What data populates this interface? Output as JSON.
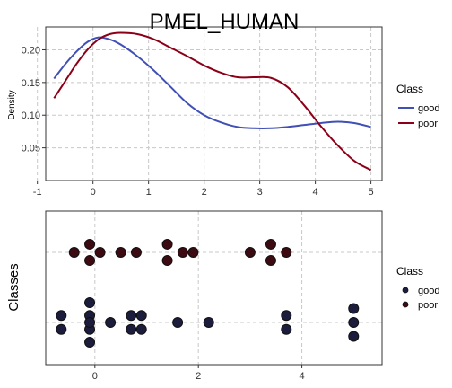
{
  "chart_data": [
    {
      "type": "line",
      "title": "PMEL_HUMAN",
      "ylabel": "Density",
      "xlim": [
        -0.85,
        5.2
      ],
      "ylim": [
        0.0,
        0.235
      ],
      "xticks": [
        -1,
        0,
        1,
        2,
        3,
        4,
        5
      ],
      "yticks": [
        0.05,
        0.1,
        0.15,
        0.2
      ],
      "ytick_labels": [
        "0.05",
        "0.10",
        "0.15",
        "0.20"
      ],
      "grid": true,
      "legend_title": "Class",
      "legend_position": "right",
      "series": [
        {
          "name": "good",
          "color": "#4050b5",
          "x": [
            -0.7,
            -0.5,
            -0.3,
            -0.1,
            0.1,
            0.3,
            0.5,
            0.8,
            1.1,
            1.4,
            1.7,
            2.0,
            2.3,
            2.6,
            2.9,
            3.2,
            3.5,
            3.8,
            4.1,
            4.4,
            4.7,
            5.0
          ],
          "y": [
            0.156,
            0.178,
            0.197,
            0.212,
            0.219,
            0.216,
            0.208,
            0.19,
            0.168,
            0.143,
            0.118,
            0.1,
            0.089,
            0.082,
            0.08,
            0.08,
            0.082,
            0.085,
            0.088,
            0.09,
            0.088,
            0.082
          ]
        },
        {
          "name": "poor",
          "color": "#8b0018",
          "x": [
            -0.7,
            -0.5,
            -0.3,
            -0.1,
            0.1,
            0.3,
            0.5,
            0.8,
            1.1,
            1.4,
            1.7,
            2.0,
            2.3,
            2.6,
            2.9,
            3.2,
            3.5,
            3.8,
            4.1,
            4.4,
            4.7,
            5.0
          ],
          "y": [
            0.126,
            0.152,
            0.178,
            0.2,
            0.216,
            0.224,
            0.226,
            0.224,
            0.216,
            0.203,
            0.19,
            0.176,
            0.165,
            0.158,
            0.158,
            0.157,
            0.143,
            0.115,
            0.083,
            0.054,
            0.03,
            0.016
          ]
        }
      ]
    },
    {
      "type": "scatter",
      "ylabel": "Classes",
      "xlim": [
        -0.95,
        5.55
      ],
      "xticks": [
        0,
        2,
        4
      ],
      "grid": true,
      "legend_title": "Class",
      "legend_position": "right",
      "series": [
        {
          "name": "good",
          "fill": "#1c1c3c",
          "x": [
            -0.65,
            -0.65,
            -0.1,
            -0.1,
            -0.1,
            -0.1,
            -0.1,
            0.3,
            0.7,
            0.7,
            0.9,
            0.9,
            1.6,
            2.2,
            3.7,
            3.7,
            5.0,
            5.0,
            5.0
          ],
          "y": [
            0.06,
            -0.06,
            0.17,
            0.06,
            -0.06,
            -0.17,
            0.0,
            0.0,
            0.06,
            -0.06,
            0.06,
            -0.06,
            0.0,
            0.0,
            0.06,
            -0.06,
            0.12,
            0.0,
            -0.12
          ]
        },
        {
          "name": "poor",
          "fill": "#3c0a10",
          "x": [
            -0.4,
            -0.1,
            -0.1,
            0.1,
            0.5,
            0.8,
            1.4,
            1.4,
            1.7,
            1.9,
            3.0,
            3.4,
            3.4,
            3.7
          ],
          "y": [
            0.0,
            0.07,
            -0.07,
            0.0,
            0.0,
            0.0,
            0.07,
            -0.07,
            0.0,
            0.0,
            0.0,
            0.07,
            -0.07,
            0.0
          ]
        }
      ]
    }
  ]
}
